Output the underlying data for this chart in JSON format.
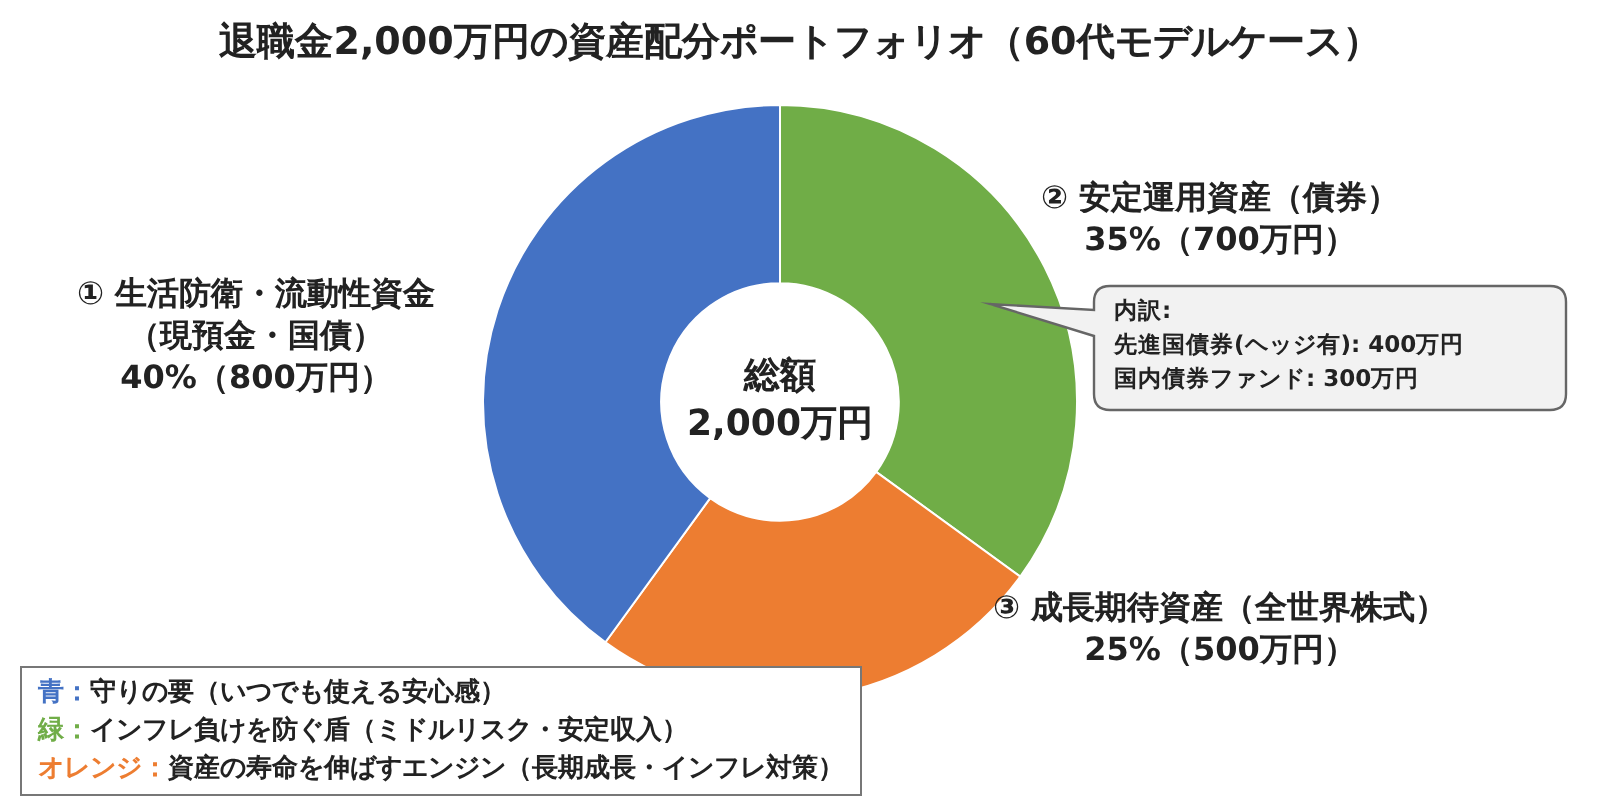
{
  "chart_data": {
    "type": "donut",
    "title": "退職金2,000万円の資産配分ポートフォリオ（60代モデルケース）",
    "categories": [
      "② 安定運用資産（債券）",
      "③ 成長期待資産（全世界株式）",
      "① 生活防衛・流動性資金（現預金・国債）"
    ],
    "values": [
      35,
      25,
      40
    ],
    "value_labels": [
      "35%（700万円）",
      "25%（500万円）",
      "40%（800万円）"
    ],
    "colors": [
      "#70ad47",
      "#ed7d31",
      "#4472c4"
    ],
    "legend": false,
    "annotations": [
      "総額",
      "2,000万円",
      "内訳:",
      "先進国債券(ヘッジ有): 400万円",
      "国内債券ファンド: 300万円",
      "青：守りの要（いつでも使える安心感）",
      "緑：インフレ負けを防ぐ盾（ミドルリスク・安定収入）",
      "オレンジ：資産の寿命を伸ばすエンジン（長期成長・インフレ対策）"
    ]
  }
}
